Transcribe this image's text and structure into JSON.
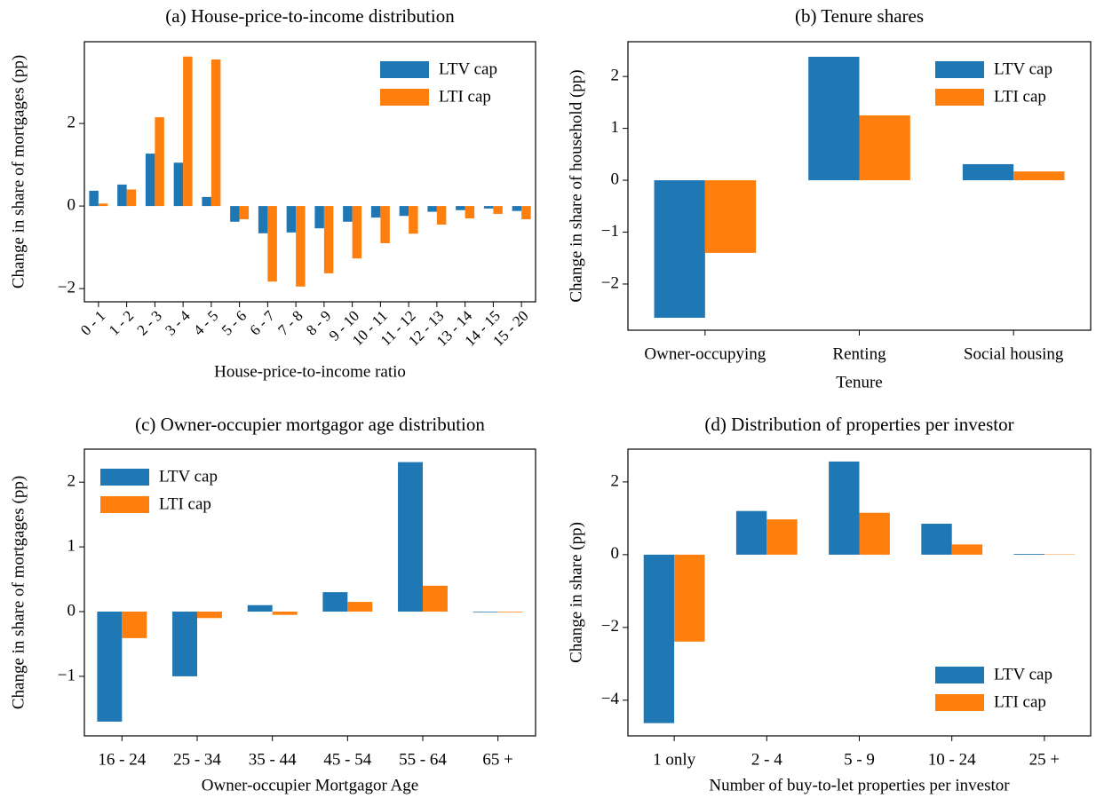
{
  "chart_data": [
    {
      "type": "bar",
      "title": "(a) House-price-to-income distribution",
      "xlabel": "House-price-to-income ratio",
      "ylabel": "Change in share of mortgages (pp)",
      "categories": [
        "0 - 1",
        "1 - 2",
        "2 - 3",
        "3 - 4",
        "4 - 5",
        "5 - 6",
        "6 - 7",
        "7 - 8",
        "8 - 9",
        "9 - 10",
        "10 - 11",
        "11 - 12",
        "12 - 13",
        "13 - 14",
        "14 - 15",
        "15 - 20"
      ],
      "series": [
        {
          "name": "LTV cap",
          "color": "#1f77b4",
          "values": [
            0.37,
            0.52,
            1.27,
            1.05,
            0.22,
            -0.38,
            -0.66,
            -0.64,
            -0.54,
            -0.38,
            -0.28,
            -0.24,
            -0.14,
            -0.1,
            -0.06,
            -0.12
          ]
        },
        {
          "name": "LTI cap",
          "color": "#ff7f0e",
          "values": [
            0.06,
            0.4,
            2.15,
            3.62,
            3.55,
            -0.32,
            -1.83,
            -1.95,
            -1.63,
            -1.27,
            -0.9,
            -0.67,
            -0.45,
            -0.3,
            -0.19,
            -0.32
          ]
        }
      ],
      "ylim": [
        -2.32,
        3.98
      ],
      "yticks": [
        {
          "value": -2,
          "label": "−2"
        },
        0,
        2
      ],
      "xtick_rotation": 45,
      "legend": "upper right"
    },
    {
      "type": "bar",
      "title": "(b) Tenure shares",
      "xlabel": "Tenure",
      "ylabel": "Change in share of household (pp)",
      "categories": [
        "Owner-occupying",
        "Renting",
        "Social housing"
      ],
      "series": [
        {
          "name": "LTV cap",
          "color": "#1f77b4",
          "values": [
            -2.65,
            2.38,
            0.31
          ]
        },
        {
          "name": "LTI cap",
          "color": "#ff7f0e",
          "values": [
            -1.4,
            1.25,
            0.17
          ]
        }
      ],
      "ylim": [
        -2.89,
        2.67
      ],
      "yticks": [
        {
          "value": -2,
          "label": "−2"
        },
        {
          "value": -1,
          "label": "−1"
        },
        0,
        1,
        2
      ],
      "legend": "upper right"
    },
    {
      "type": "bar",
      "title": "(c) Owner-occupier mortgagor age distribution",
      "xlabel": "Owner-occupier Mortgagor Age",
      "ylabel": "Change in share of mortgages (pp)",
      "categories": [
        "16 - 24",
        "25 - 34",
        "35 - 44",
        "45 - 54",
        "55 - 64",
        "65 +"
      ],
      "series": [
        {
          "name": "LTV cap",
          "color": "#1f77b4",
          "values": [
            -1.7,
            -1.0,
            0.1,
            0.3,
            2.31,
            -0.01
          ]
        },
        {
          "name": "LTI cap",
          "color": "#ff7f0e",
          "values": [
            -0.41,
            -0.1,
            -0.05,
            0.15,
            0.4,
            -0.01
          ]
        }
      ],
      "ylim": [
        -1.92,
        2.51
      ],
      "yticks": [
        {
          "value": -1,
          "label": "−1"
        },
        0,
        1,
        2
      ],
      "legend": "upper left"
    },
    {
      "type": "bar",
      "title": "(d) Distribution of properties per investor",
      "xlabel": "Number of buy-to-let properties per investor",
      "ylabel": "Change in share (pp)",
      "categories": [
        "1 only",
        "2 - 4",
        "5 - 9",
        "10 - 24",
        "25 +"
      ],
      "series": [
        {
          "name": "LTV cap",
          "color": "#1f77b4",
          "values": [
            -4.63,
            1.2,
            2.56,
            0.85,
            0.02
          ]
        },
        {
          "name": "LTI cap",
          "color": "#ff7f0e",
          "values": [
            -2.39,
            0.97,
            1.15,
            0.28,
            0.01
          ]
        }
      ],
      "ylim": [
        -4.98,
        2.9
      ],
      "yticks": [
        {
          "value": -4,
          "label": "−4"
        },
        {
          "value": -2,
          "label": "−2"
        },
        0,
        2
      ],
      "legend": "lower right"
    }
  ]
}
